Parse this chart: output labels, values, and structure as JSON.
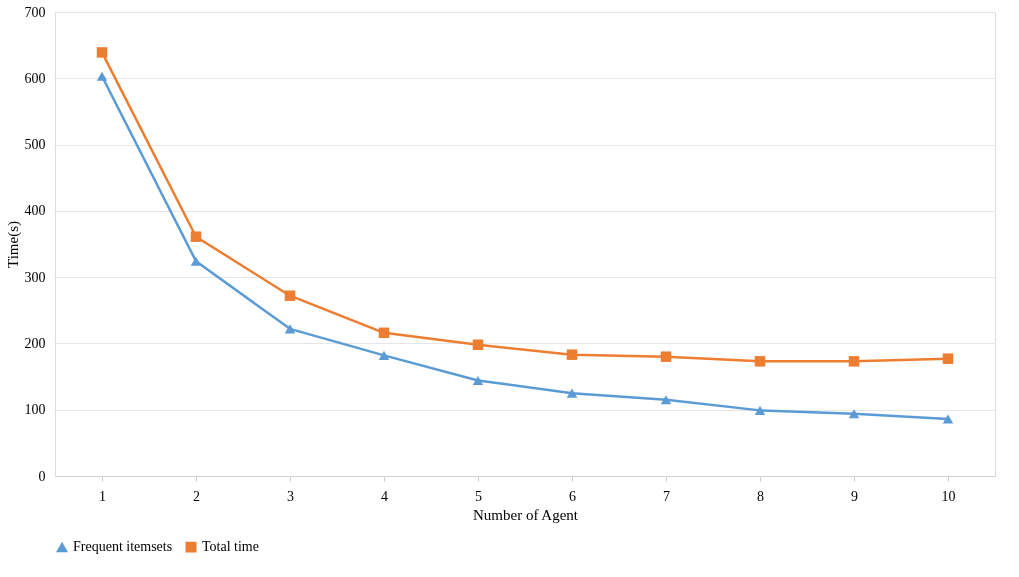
{
  "chart_data": {
    "type": "line",
    "xlabel": "Number of Agent",
    "ylabel": "Time(s)",
    "categories": [
      "1",
      "2",
      "3",
      "4",
      "5",
      "6",
      "7",
      "8",
      "9",
      "10"
    ],
    "series": [
      {
        "name": "Frequent itemsets",
        "color": "#5b9bd5",
        "marker": "triangle",
        "values": [
          603,
          324,
          222,
          182,
          144,
          125,
          115,
          99,
          94,
          86
        ]
      },
      {
        "name": "Total time",
        "color": "#ed7d31",
        "marker": "square",
        "values": [
          639,
          361,
          272,
          216,
          198,
          183,
          180,
          173,
          173,
          177
        ]
      }
    ],
    "ylim": [
      0,
      700
    ],
    "yticks": [
      0,
      100,
      200,
      300,
      400,
      500,
      600,
      700
    ],
    "grid": "y",
    "legend": "bottom",
    "line_style": "solid"
  }
}
